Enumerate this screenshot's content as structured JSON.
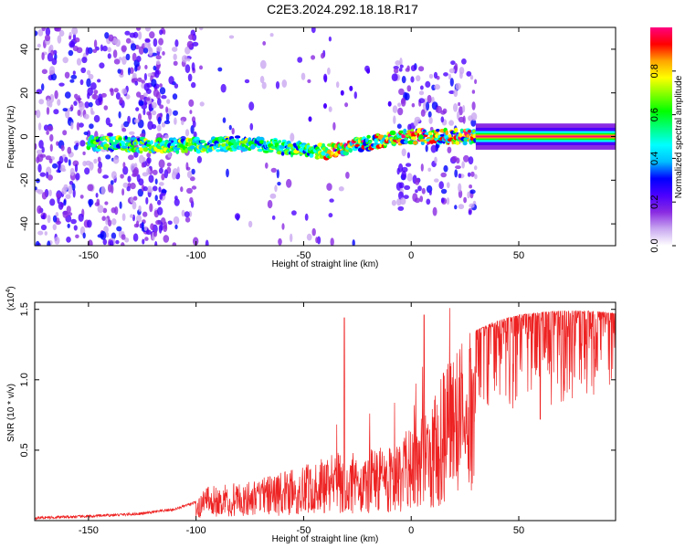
{
  "title": "C2E3.2024.292.18.18.R17",
  "chart_data": [
    {
      "type": "heatmap",
      "xlabel": "Height of straight line (km)",
      "ylabel": "Frequency (Hz)",
      "xlim": [
        -175,
        95
      ],
      "ylim": [
        -50,
        50
      ],
      "x_ticks": [
        -150,
        -100,
        -50,
        0,
        50
      ],
      "y_ticks": [
        -40,
        -20,
        0,
        20,
        40
      ],
      "colorbar": {
        "label": "Normalized spectral amplitude",
        "range": [
          0.0,
          1.0
        ],
        "ticks": [
          "0.0",
          "0.2",
          "0.4",
          "0.6",
          "0.8"
        ],
        "colormap": [
          "#ffffff",
          "#c9a8f0",
          "#8a2be2",
          "#4b00ff",
          "#0000ff",
          "#00bfff",
          "#00ffff",
          "#00ff80",
          "#00ff00",
          "#80ff00",
          "#ffff00",
          "#ffa500",
          "#ff0000",
          "#ff0080"
        ]
      },
      "ridge": {
        "x": [
          -145,
          -120,
          -100,
          -80,
          -60,
          -50,
          -40,
          -30,
          -20,
          -10,
          0,
          30,
          95
        ],
        "y": [
          -3,
          -4,
          -4,
          -3,
          -5,
          -6,
          -7,
          -5,
          -3,
          -1,
          0,
          0,
          0
        ]
      }
    },
    {
      "type": "line",
      "xlabel": "Height of straight line (km)",
      "ylabel": "SNR (10 * v/v)",
      "y_multiplier_label": "(x10",
      "y_multiplier_exp": "4",
      "xlim": [
        -175,
        95
      ],
      "ylim": [
        0,
        15500
      ],
      "x_ticks": [
        -150,
        -100,
        -50,
        0,
        50
      ],
      "y_ticks": [
        "0.5",
        "1.0",
        "1.5"
      ],
      "y_tick_values": [
        5000,
        10000,
        15000
      ],
      "line_color": "#ee2222",
      "envelope": {
        "x": [
          -175,
          -150,
          -125,
          -110,
          -100,
          -95,
          -85,
          -75,
          -65,
          -55,
          -45,
          -35,
          -25,
          -15,
          -5,
          0,
          5,
          10,
          15,
          20,
          25,
          30,
          40,
          50,
          60,
          70,
          80,
          90,
          95
        ],
        "y": [
          200,
          300,
          500,
          800,
          1300,
          2500,
          2600,
          2800,
          3200,
          3700,
          4200,
          4800,
          5000,
          5200,
          5600,
          6800,
          8000,
          9000,
          10500,
          12000,
          13000,
          13500,
          14200,
          14600,
          14800,
          14900,
          14900,
          14800,
          14700
        ]
      }
    }
  ]
}
